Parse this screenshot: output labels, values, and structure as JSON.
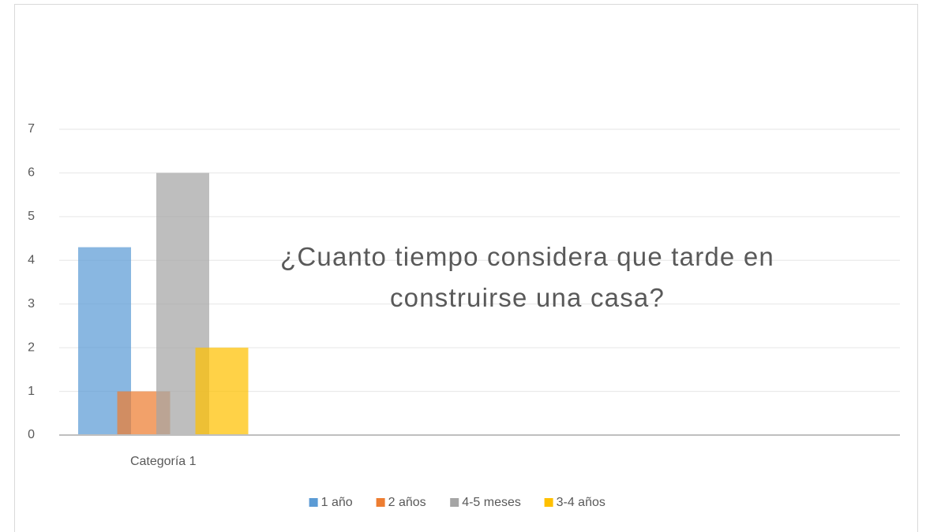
{
  "chart_data": {
    "type": "bar",
    "title": "¿Cuanto tiempo considera que tarde en construirse una casa?",
    "categories": [
      "Categoría 1"
    ],
    "series": [
      {
        "name": "1 año",
        "color": "#5b9bd5",
        "values": [
          4.3
        ]
      },
      {
        "name": "2 años",
        "color": "#ed7d31",
        "values": [
          1
        ]
      },
      {
        "name": "4-5 meses",
        "color": "#a5a5a5",
        "values": [
          6
        ]
      },
      {
        "name": "3-4 años",
        "color": "#ffc000",
        "values": [
          2
        ]
      }
    ],
    "ylim": [
      0,
      7
    ],
    "yticks": [
      0,
      1,
      2,
      3,
      4,
      5,
      6,
      7
    ],
    "grid": true,
    "legend": "bottom"
  }
}
